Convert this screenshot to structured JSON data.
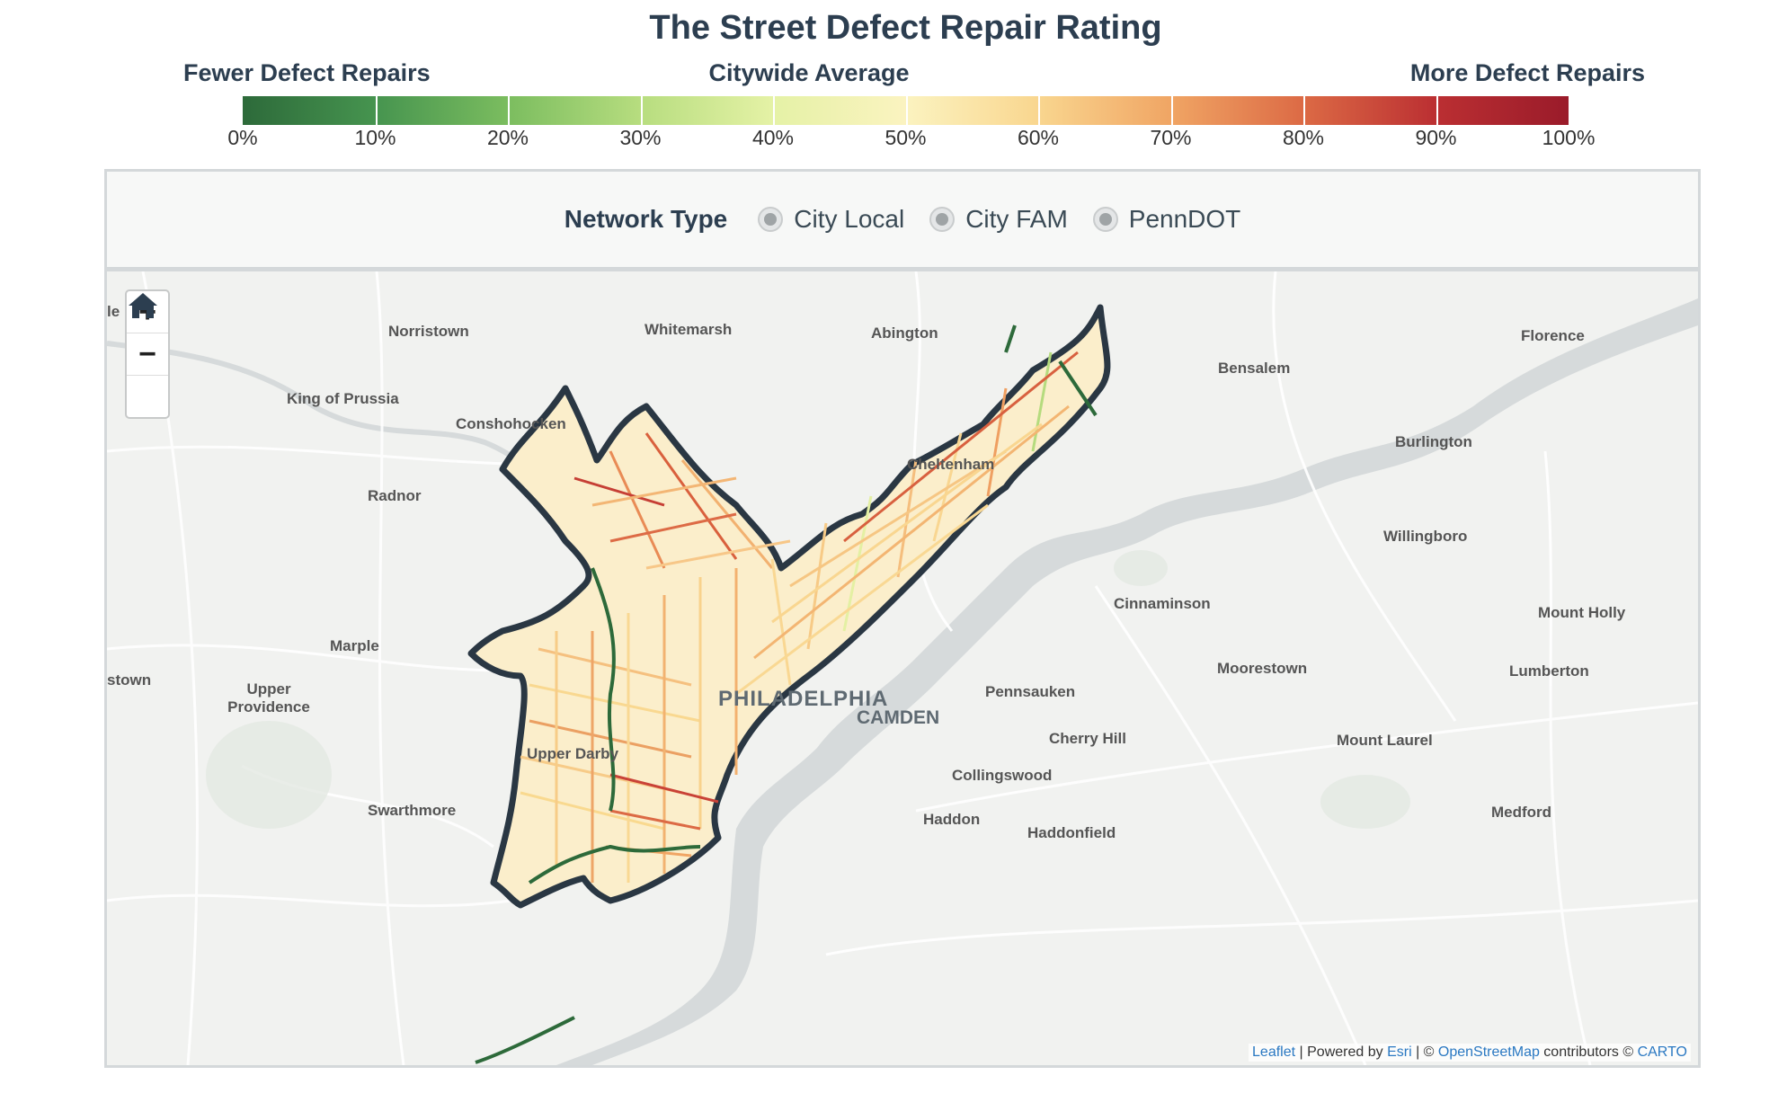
{
  "title": "The Street Defect Repair Rating",
  "legend": {
    "left_label": "Fewer Defect Repairs",
    "middle_label": "Citywide Average",
    "right_label": "More Defect Repairs",
    "ticks": [
      "0%",
      "10%",
      "20%",
      "30%",
      "40%",
      "50%",
      "60%",
      "70%",
      "80%",
      "90%",
      "100%"
    ],
    "colors": [
      "#2d6a3a",
      "#46944f",
      "#7bbd5f",
      "#b7dd7f",
      "#e5f2a6",
      "#fbf3c0",
      "#f9d68f",
      "#f0a564",
      "#dc6a45",
      "#bb2f32",
      "#9a1b2a"
    ]
  },
  "filter": {
    "title": "Network Type",
    "options": [
      "City Local",
      "City FAM",
      "PennDOT"
    ]
  },
  "map": {
    "zoom_in": "+",
    "zoom_out": "−",
    "home_icon": "home-icon",
    "places": {
      "norristown": "Norristown",
      "whitemarsh": "Whitemarsh",
      "abington": "Abington",
      "florence": "Florence",
      "bensalem": "Bensalem",
      "king_of_prussia": "King of Prussia",
      "conshohocken": "Conshohocken",
      "burlington": "Burlington",
      "cheltenham": "Cheltenham",
      "radnor": "Radnor",
      "willingboro": "Willingboro",
      "cinnaminson": "Cinnaminson",
      "mount_holly": "Mount Holly",
      "marple": "Marple",
      "moorestown": "Moorestown",
      "lumberton": "Lumberton",
      "newtown_partial": "stown",
      "le_partial": "le",
      "upper_providence": "Upper Providence",
      "philadelphia": "PHILADELPHIA",
      "camden": "CAMDEN",
      "pennsauken": "Pennsauken",
      "cherry_hill": "Cherry Hill",
      "upper_darby": "Upper Darby",
      "mount_laurel": "Mount Laurel",
      "collingswood": "Collingswood",
      "swarthmore": "Swarthmore",
      "haddon": "Haddon",
      "haddonfield": "Haddonfield",
      "medford": "Medford"
    },
    "attribution": {
      "leaflet": "Leaflet",
      "sep1": " | Powered by ",
      "esri": "Esri",
      "sep2": " | © ",
      "osm": "OpenStreetMap",
      "sep3": " contributors © ",
      "carto": "CARTO"
    }
  }
}
